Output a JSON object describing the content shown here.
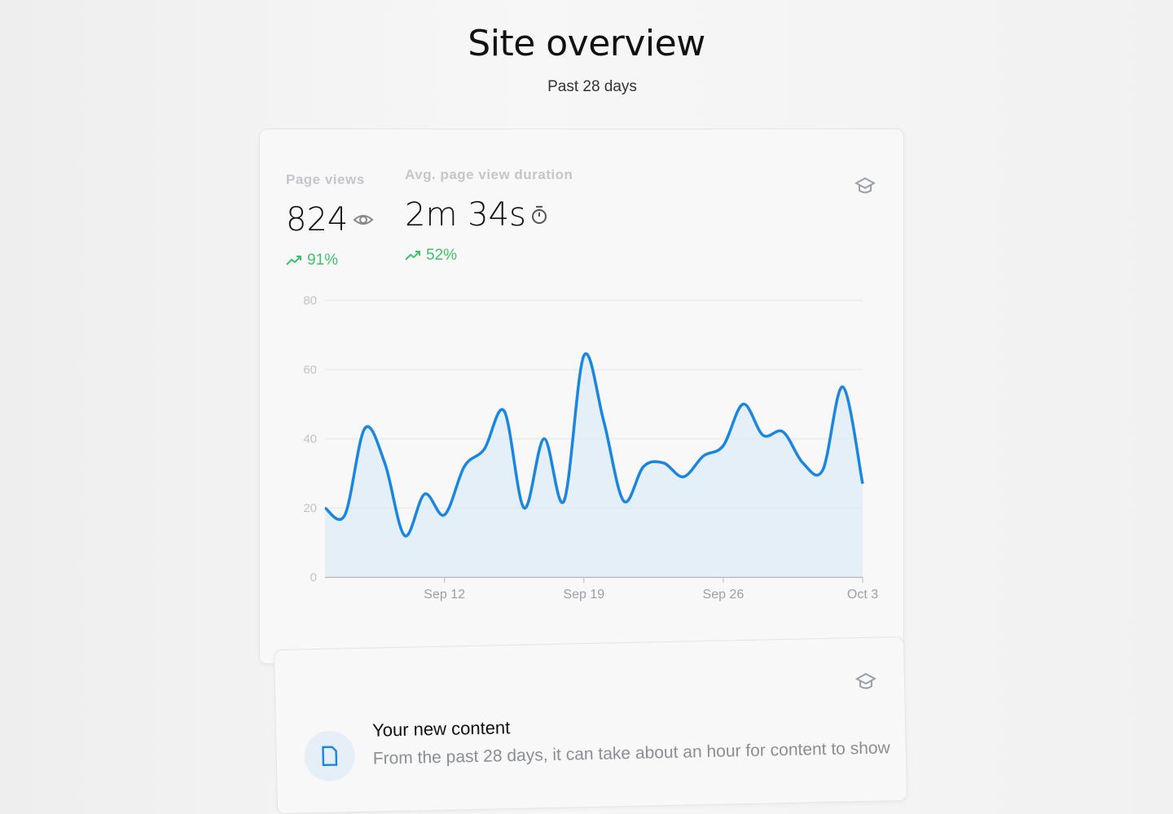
{
  "header": {
    "title": "Site overview",
    "subtitle": "Past 28 days"
  },
  "metrics": [
    {
      "label": "Page views",
      "value": "824",
      "icon": "eye-icon",
      "change": "91%",
      "trend": "trending-up-icon"
    },
    {
      "label": "Avg. page view duration",
      "value": "2m 34s",
      "icon": "stopwatch-icon",
      "change": "52%",
      "trend": "trending-up-icon"
    }
  ],
  "colors": {
    "line": "#1a86e0",
    "fill": "#dcebf8",
    "positive": "#3fc26b",
    "grid": "#e2e4e7"
  },
  "chart_data": {
    "type": "area",
    "title": "",
    "xlabel": "",
    "ylabel": "",
    "ylim": [
      0,
      80
    ],
    "yticks": [
      "0",
      "20",
      "40",
      "60",
      "80"
    ],
    "xtick_labels": [
      "Sep 12",
      "Sep 19",
      "Sep 26",
      "Oct 3"
    ],
    "x": [
      "Sep 6",
      "Sep 7",
      "Sep 8",
      "Sep 9",
      "Sep 10",
      "Sep 11",
      "Sep 12",
      "Sep 13",
      "Sep 14",
      "Sep 15",
      "Sep 16",
      "Sep 17",
      "Sep 18",
      "Sep 19",
      "Sep 20",
      "Sep 21",
      "Sep 22",
      "Sep 23",
      "Sep 24",
      "Sep 25",
      "Sep 26",
      "Sep 27",
      "Sep 28",
      "Sep 29",
      "Sep 30",
      "Oct 1",
      "Oct 2",
      "Oct 3"
    ],
    "values": [
      20,
      18,
      43,
      33,
      12,
      24,
      18,
      32,
      37,
      48,
      20,
      40,
      22,
      64,
      45,
      22,
      32,
      33,
      29,
      35,
      38,
      50,
      41,
      42,
      33,
      31,
      55,
      27
    ],
    "grid": true
  },
  "content_card": {
    "title": "Your new content",
    "subtitle": "From the past 28 days, it can take about an hour for content to show",
    "icon": "document-icon"
  },
  "card_icon": "graduation-cap-icon"
}
